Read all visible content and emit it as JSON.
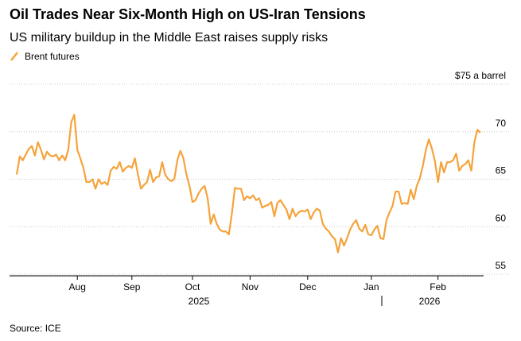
{
  "chart_data": {
    "type": "line",
    "title": "Oil Trades Near Six-Month High on US-Iran Tensions",
    "subtitle": "US military buildup in the Middle East raises supply risks",
    "source": "Source: ICE",
    "categories": [
      null,
      null,
      null,
      null,
      null,
      null,
      null,
      null,
      null,
      null,
      null,
      null,
      null,
      null,
      null,
      null,
      null,
      null,
      null,
      null,
      "Aug",
      null,
      null,
      null,
      null,
      null,
      null,
      null,
      null,
      null,
      null,
      null,
      null,
      null,
      null,
      null,
      null,
      null,
      "Sep",
      null,
      null,
      null,
      null,
      null,
      null,
      null,
      null,
      null,
      null,
      null,
      null,
      null,
      null,
      null,
      null,
      null,
      null,
      null,
      "Oct",
      null,
      null,
      null,
      null,
      null,
      null,
      null,
      null,
      null,
      null,
      null,
      null,
      null,
      null,
      null,
      null,
      null,
      null,
      "Nov",
      null,
      null,
      null,
      null,
      null,
      null,
      null,
      null,
      null,
      null,
      null,
      null,
      null,
      null,
      null,
      null,
      null,
      null,
      "Dec",
      null,
      null,
      null,
      null,
      null,
      null,
      null,
      null,
      null,
      null,
      null,
      null,
      null,
      null,
      null,
      null,
      null,
      null,
      null,
      null,
      "Jan",
      null,
      null,
      null,
      null,
      null,
      null,
      null,
      null,
      null,
      null,
      null,
      null,
      null,
      null,
      null,
      null,
      null,
      null,
      null,
      null,
      null,
      "Feb",
      null,
      null,
      null,
      null,
      null,
      null,
      null,
      null,
      null,
      null,
      null,
      null,
      null,
      null
    ],
    "x_group_labels": [
      "2025",
      "2026"
    ],
    "series": [
      {
        "name": "Brent futures",
        "color": "#f5a33b",
        "values": [
          65.5,
          67.4,
          67.0,
          67.6,
          68.2,
          68.5,
          67.5,
          68.9,
          68.1,
          67.1,
          67.9,
          67.5,
          67.4,
          67.6,
          67.0,
          67.5,
          67.0,
          68.1,
          71.0,
          71.8,
          68.1,
          67.2,
          66.2,
          64.7,
          64.7,
          65.0,
          64.0,
          65.0,
          64.5,
          64.7,
          64.4,
          65.9,
          66.3,
          66.1,
          66.8,
          65.8,
          66.2,
          66.4,
          66.2,
          67.2,
          65.5,
          64.0,
          64.4,
          64.7,
          66.0,
          64.7,
          65.2,
          65.3,
          66.8,
          65.5,
          65.0,
          64.8,
          65.0,
          67.0,
          68.0,
          67.2,
          65.5,
          64.3,
          62.6,
          62.8,
          63.5,
          64.0,
          64.3,
          63.0,
          60.3,
          61.3,
          60.3,
          59.7,
          59.5,
          59.5,
          59.2,
          61.4,
          64.1,
          64.0,
          64.0,
          62.8,
          63.2,
          63.0,
          63.3,
          62.8,
          63.0,
          62.0,
          62.2,
          62.3,
          62.6,
          61.1,
          62.5,
          62.8,
          62.3,
          61.8,
          60.8,
          61.9,
          61.1,
          61.5,
          61.7,
          61.6,
          61.8,
          60.8,
          61.5,
          61.9,
          61.7,
          60.3,
          59.8,
          59.5,
          59.0,
          58.7,
          57.3,
          58.8,
          58.0,
          58.8,
          59.7,
          60.3,
          60.7,
          59.8,
          59.5,
          60.2,
          59.2,
          59.1,
          59.7,
          60.1,
          58.8,
          58.7,
          60.7,
          61.5,
          62.2,
          63.7,
          63.7,
          62.4,
          62.5,
          62.4,
          63.9,
          62.9,
          64.3,
          65.1,
          66.4,
          68.1,
          69.2,
          68.2,
          66.9,
          64.7,
          66.8,
          65.7,
          66.8,
          66.8,
          67.0,
          67.7,
          65.9,
          66.4,
          66.6,
          67.0,
          65.9,
          68.9,
          70.2,
          69.9
        ]
      }
    ],
    "ylim": [
      55,
      75
    ],
    "yticks": [
      55,
      60,
      65,
      70,
      {
        "value": 75,
        "label": "$75 a barrel"
      }
    ],
    "grid": true
  }
}
